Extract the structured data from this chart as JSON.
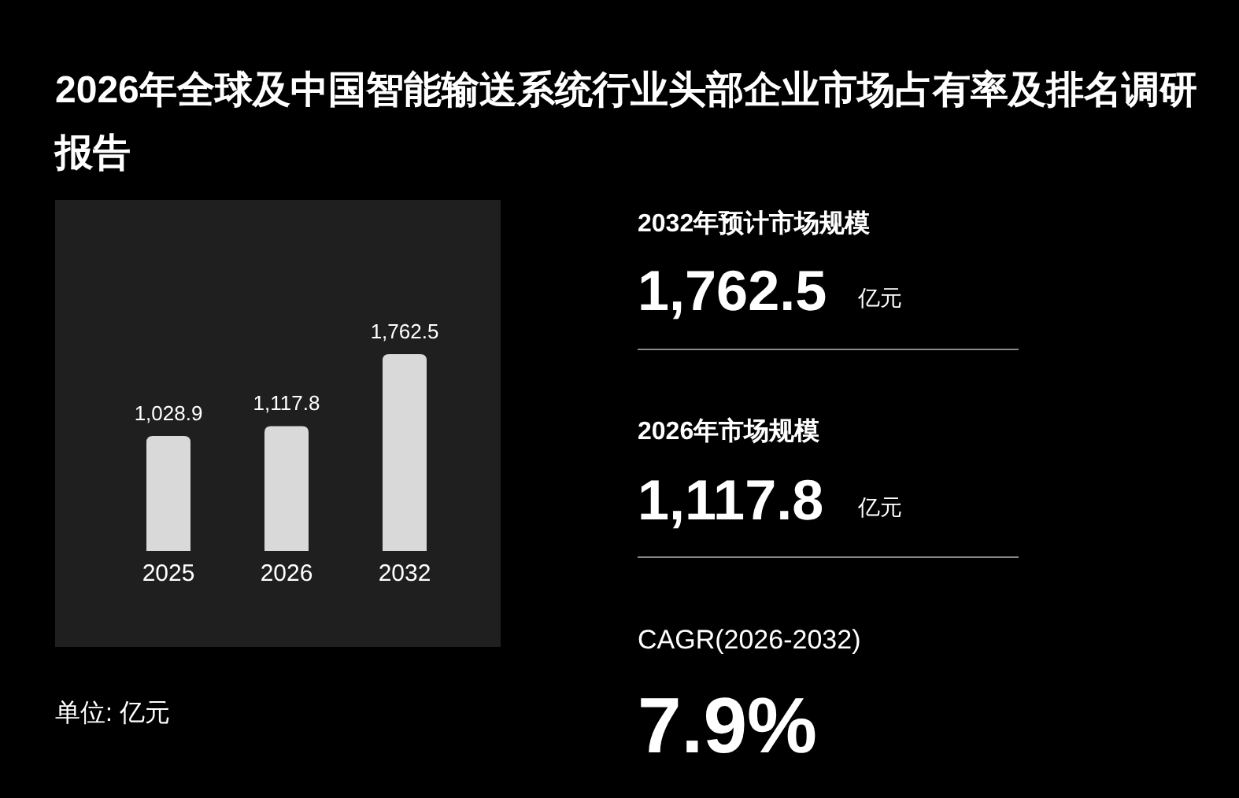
{
  "chart_data": [
    {
      "type": "bar",
      "title": "2026年全球及中国智能输送系统行业头部企业市场占有率及排名调研报告",
      "categories": [
        "2025",
        "2026",
        "2032"
      ],
      "values": [
        1028.9,
        1117.8,
        1762.5
      ],
      "value_labels": [
        "1,028.9",
        "1,117.8",
        "1,762.5"
      ],
      "color": "#d9d9d9",
      "annotations": [
        "单位: 亿元"
      ]
    },
    {
      "type": "other",
      "annotations": [
        "2032年预计市场规模",
        "1,762.5",
        "亿元",
        "2026年市场规模",
        "1,117.8",
        "亿元",
        "CAGR(2026-2032)",
        "7.9%"
      ]
    }
  ]
}
